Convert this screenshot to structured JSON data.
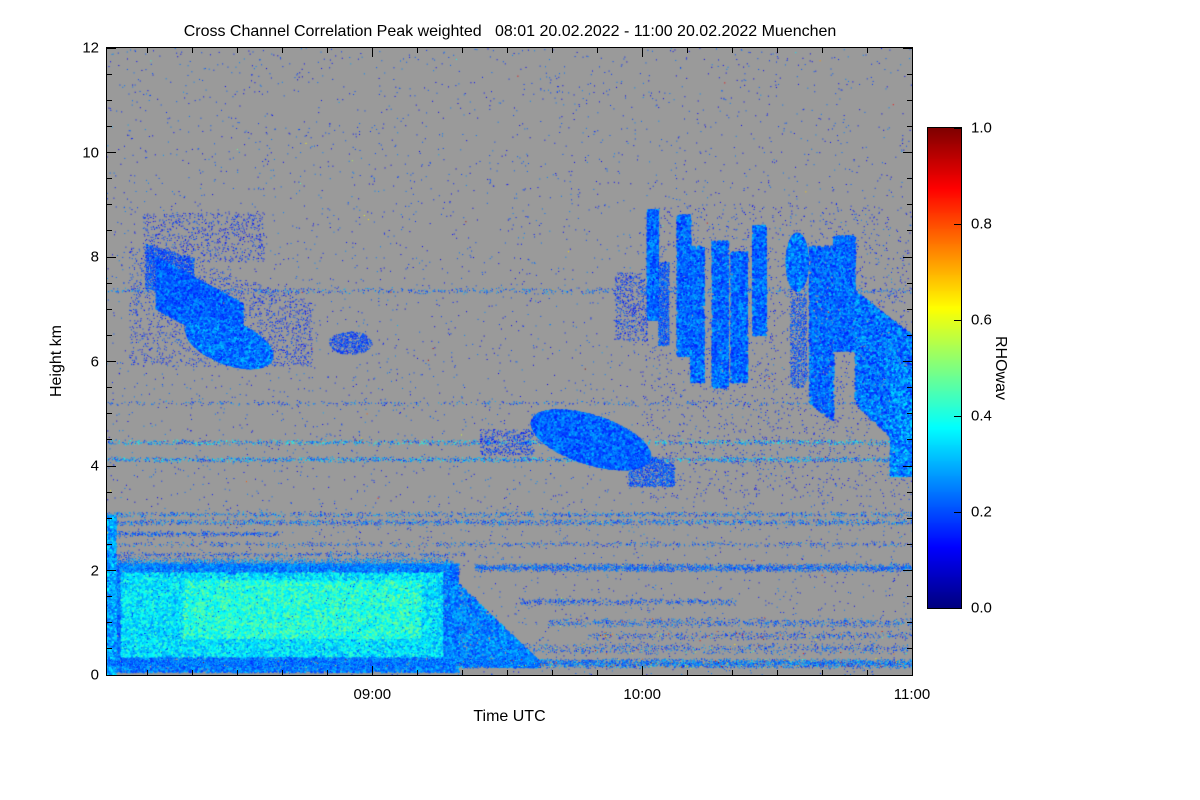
{
  "title": "Cross Channel Correlation Peak weighted   08:01 20.02.2022 - 11:00 20.02.2022 Muenchen",
  "colors": {
    "no_data_gray": "#9a9a9a",
    "frame": "#000000",
    "background": "#ffffff"
  },
  "axes": {
    "x": {
      "label": "Time UTC",
      "ticks": [
        {
          "hour": 9,
          "label": "09:00"
        },
        {
          "hour": 10,
          "label": "10:00"
        },
        {
          "hour": 11,
          "label": "11:00"
        }
      ]
    },
    "y": {
      "label": "Height km",
      "ticks": [
        {
          "km": 0,
          "label": "0"
        },
        {
          "km": 2,
          "label": "2"
        },
        {
          "km": 4,
          "label": "4"
        },
        {
          "km": 6,
          "label": "6"
        },
        {
          "km": 8,
          "label": "8"
        },
        {
          "km": 10,
          "label": "10"
        },
        {
          "km": 12,
          "label": "12"
        }
      ]
    }
  },
  "colorbar": {
    "label": "RHOwav",
    "min": 0.0,
    "max": 1.0,
    "colormap": "jet",
    "ticks": [
      {
        "value": 0.0,
        "label": "0.0"
      },
      {
        "value": 0.2,
        "label": "0.2"
      },
      {
        "value": 0.4,
        "label": "0.4"
      },
      {
        "value": 0.6,
        "label": "0.6"
      },
      {
        "value": 0.8,
        "label": "0.8"
      },
      {
        "value": 1.0,
        "label": "1.0"
      }
    ]
  },
  "chart_data": {
    "type": "heatmap",
    "title": "Cross Channel Correlation Peak weighted   08:01 20.02.2022 - 11:00 20.02.2022 Muenchen",
    "xlabel": "Time UTC",
    "ylabel": "Height km",
    "value_label": "RHOwav",
    "value_range": [
      0.0,
      1.0
    ],
    "colormap": "jet",
    "x_range_hours_utc": [
      8.0167,
      11.0
    ],
    "y_range_km": [
      0,
      12
    ],
    "background": "no-data gray",
    "legend_position": "right colorbar",
    "features": [
      {
        "desc": "boundary-layer aerosol deck 0-2.1 km, 08:01-09:20",
        "kind": "patch",
        "t": [
          8.02,
          9.32
        ],
        "h": [
          0.05,
          2.12
        ],
        "n": 30000,
        "v": [
          0.17,
          0.32
        ],
        "size": 2
      },
      {
        "desc": "boundary-layer bright core",
        "kind": "patch",
        "t": [
          8.07,
          9.26
        ],
        "h": [
          0.35,
          1.95
        ],
        "n": 20000,
        "v": [
          0.27,
          0.44
        ],
        "size": 2
      },
      {
        "desc": "boundary-layer brightest cyan pockets",
        "kind": "patch",
        "t": [
          8.3,
          9.18
        ],
        "h": [
          0.7,
          1.8
        ],
        "n": 9000,
        "v": [
          0.33,
          0.5
        ],
        "size": 2
      },
      {
        "desc": "ragged boundary-layer top ~2.1 km",
        "kind": "hline",
        "h": 2.12,
        "jitter": 0.14,
        "t": [
          8.02,
          9.3
        ],
        "n": 2600,
        "v": [
          0.18,
          0.34
        ]
      },
      {
        "desc": "boundary-layer decay tail 09:17-09:37",
        "kind": "patch",
        "t": [
          9.28,
          9.62
        ],
        "h": [
          0.15,
          1.95
        ],
        "hi_slope": -5,
        "n": 4500,
        "v": [
          0.18,
          0.33
        ],
        "size": 2
      },
      {
        "desc": "left-edge column at start of record",
        "kind": "patch",
        "t": [
          8.017,
          8.05
        ],
        "h": [
          0,
          3.05
        ],
        "n": 1800,
        "v": [
          0.2,
          0.38
        ],
        "size": 2
      },
      {
        "desc": "near-surface echo line ~0.2 km",
        "kind": "hline",
        "h": 0.22,
        "t": [
          8.02,
          9.3
        ],
        "jitter": 0.09,
        "n": 2600,
        "v": [
          0.15,
          0.33
        ],
        "hot": 0.01
      },
      {
        "desc": "near-surface echo line with multicolor outliers",
        "kind": "hline",
        "h": 0.22,
        "t": [
          9.3,
          11.0
        ],
        "jitter": 0.1,
        "n": 3600,
        "v": [
          0.15,
          0.33
        ],
        "hot": 0.06
      },
      {
        "kind": "hline",
        "h": 0.5,
        "t": [
          9.45,
          11.0
        ],
        "jitter": 0.12,
        "n": 800,
        "v": [
          0.13,
          0.3
        ],
        "hot": 0.04
      },
      {
        "kind": "hline",
        "h": 0.75,
        "t": [
          9.8,
          11.0
        ],
        "jitter": 0.1,
        "n": 500,
        "v": [
          0.13,
          0.28
        ],
        "hot": 0.05
      },
      {
        "kind": "hline",
        "h": 1.0,
        "t": [
          9.65,
          11.0
        ],
        "jitter": 0.1,
        "n": 800,
        "v": [
          0.14,
          0.3
        ],
        "hot": 0.02
      },
      {
        "kind": "hline",
        "h": 1.4,
        "t": [
          9.55,
          10.35
        ],
        "jitter": 0.08,
        "n": 450,
        "v": [
          0.14,
          0.28
        ]
      },
      {
        "desc": "residual layer line ~2 km after 09:25",
        "kind": "hline",
        "h": 2.05,
        "t": [
          9.38,
          11.0
        ],
        "jitter": 0.09,
        "n": 2400,
        "v": [
          0.15,
          0.3
        ],
        "hot": 0.01
      },
      {
        "kind": "hline",
        "h": 2.3,
        "t": [
          8.02,
          9.35
        ],
        "jitter": 0.06,
        "n": 420,
        "v": [
          0.13,
          0.28
        ]
      },
      {
        "kind": "hline",
        "h": 2.5,
        "t": [
          8.02,
          11.0
        ],
        "jitter": 0.06,
        "n": 650,
        "v": [
          0.13,
          0.3
        ]
      },
      {
        "kind": "hline",
        "h": 2.7,
        "t": [
          8.02,
          8.65
        ],
        "jitter": 0.06,
        "n": 380,
        "v": [
          0.13,
          0.28
        ]
      },
      {
        "desc": "layer line ~2.9 km across full record",
        "kind": "hline",
        "h": 2.92,
        "t": [
          8.02,
          11.0
        ],
        "jitter": 0.07,
        "n": 1600,
        "v": [
          0.14,
          0.33
        ],
        "hot": 0.008
      },
      {
        "kind": "hline",
        "h": 3.07,
        "t": [
          8.02,
          11.0
        ],
        "jitter": 0.06,
        "n": 1100,
        "v": [
          0.14,
          0.33
        ]
      },
      {
        "desc": "layer line ~4.1 km across full record",
        "kind": "hline",
        "h": 4.12,
        "t": [
          8.02,
          11.0
        ],
        "jitter": 0.06,
        "n": 1700,
        "v": [
          0.15,
          0.38
        ],
        "hot": 0.012
      },
      {
        "desc": "layer line ~4.45 km across full record",
        "kind": "hline",
        "h": 4.45,
        "t": [
          8.02,
          11.0
        ],
        "jitter": 0.06,
        "n": 1400,
        "v": [
          0.15,
          0.42
        ],
        "hot": 0.02
      },
      {
        "kind": "hline",
        "h": 5.2,
        "t": [
          8.02,
          11.0
        ],
        "jitter": 0.05,
        "n": 420,
        "v": [
          0.13,
          0.3
        ]
      },
      {
        "desc": "layer line ~7.35 km across full record",
        "kind": "hline",
        "h": 7.35,
        "t": [
          8.02,
          11.0
        ],
        "jitter": 0.07,
        "n": 800,
        "v": [
          0.14,
          0.32
        ],
        "hot": 0.006
      },
      {
        "desc": "cirrus fallstreaks 08:10-08:45 upper part",
        "kind": "patch",
        "t": [
          8.16,
          8.34
        ],
        "h": [
          7.4,
          8.25
        ],
        "lo_slope": -1.5,
        "hi_slope": -1.5,
        "n": 2400,
        "v": [
          0.14,
          0.28
        ]
      },
      {
        "desc": "cirrus fallstreak band sloping down",
        "kind": "patch",
        "t": [
          8.2,
          8.52
        ],
        "h": [
          7.0,
          8.0
        ],
        "lo_slope": -2.8,
        "hi_slope": -2.8,
        "n": 7000,
        "v": [
          0.15,
          0.3
        ],
        "size": 2
      },
      {
        "desc": "cirrus dense base ~6-6.8 km",
        "kind": "ellipse",
        "tc": 8.47,
        "hc": 6.35,
        "rt": 0.16,
        "rh": 0.42,
        "slope": -1.5,
        "n": 9000,
        "v": [
          0.16,
          0.33
        ],
        "size": 2
      },
      {
        "desc": "cirrus sparse halo",
        "kind": "patch",
        "t": [
          8.1,
          8.78
        ],
        "h": [
          5.9,
          8.35
        ],
        "hi_slope": -1.8,
        "n": 2000,
        "v": [
          0.12,
          0.22
        ]
      },
      {
        "desc": "sparse speckle above cirrus up to 8.8 km",
        "kind": "patch",
        "t": [
          8.15,
          8.6
        ],
        "h": [
          7.9,
          8.85
        ],
        "n": 800,
        "v": [
          0.11,
          0.22
        ]
      },
      {
        "desc": "small cloud patch ~6.3 km near 08:55",
        "kind": "ellipse",
        "tc": 8.92,
        "hc": 6.35,
        "rt": 0.08,
        "rh": 0.22,
        "n": 650,
        "v": [
          0.13,
          0.25
        ]
      },
      {
        "desc": "mid-level cloud blob 4-5 km, 09:35-10:00",
        "kind": "ellipse",
        "tc": 9.81,
        "hc": 4.5,
        "rt": 0.22,
        "rh": 0.48,
        "slope": -1.4,
        "n": 13000,
        "v": [
          0.15,
          0.3
        ],
        "size": 2
      },
      {
        "desc": "blob descending tail to ~3.7 km",
        "kind": "patch",
        "t": [
          9.95,
          10.12
        ],
        "h": [
          3.6,
          4.35
        ],
        "hi_slope": -2,
        "n": 1300,
        "v": [
          0.14,
          0.28
        ]
      },
      {
        "kind": "patch",
        "t": [
          9.4,
          9.6
        ],
        "h": [
          4.2,
          4.7
        ],
        "n": 450,
        "v": [
          0.12,
          0.24
        ]
      },
      {
        "desc": "lead-in speckle before streak cluster",
        "kind": "patch",
        "t": [
          9.9,
          10.02
        ],
        "h": [
          6.4,
          7.7
        ],
        "n": 600,
        "v": [
          0.12,
          0.24
        ]
      },
      {
        "desc": "vertical cloud streak 10:01",
        "kind": "patch",
        "t": [
          10.02,
          10.06
        ],
        "h": [
          6.8,
          8.9
        ],
        "n": 2400,
        "v": [
          0.15,
          0.31
        ],
        "size": 2
      },
      {
        "kind": "patch",
        "t": [
          10.06,
          10.1
        ],
        "h": [
          6.3,
          7.9
        ],
        "n": 1200,
        "v": [
          0.14,
          0.29
        ]
      },
      {
        "desc": "vertical cloud streak 10:09",
        "kind": "patch",
        "t": [
          10.13,
          10.18
        ],
        "h": [
          6.1,
          8.8
        ],
        "n": 2400,
        "v": [
          0.15,
          0.31
        ],
        "size": 2
      },
      {
        "kind": "patch",
        "t": [
          10.18,
          10.23
        ],
        "h": [
          5.6,
          8.2
        ],
        "n": 2000,
        "v": [
          0.15,
          0.31
        ],
        "size": 2
      },
      {
        "desc": "vertical cloud streak 10:17",
        "kind": "patch",
        "t": [
          10.26,
          10.32
        ],
        "h": [
          5.5,
          8.3
        ],
        "n": 2600,
        "v": [
          0.15,
          0.31
        ],
        "size": 2
      },
      {
        "desc": "vertical cloud streak 10:21",
        "kind": "patch",
        "t": [
          10.33,
          10.39
        ],
        "h": [
          5.6,
          8.1
        ],
        "n": 2600,
        "v": [
          0.15,
          0.31
        ],
        "size": 2
      },
      {
        "desc": "vertical cloud streak 10:26",
        "kind": "patch",
        "t": [
          10.41,
          10.46
        ],
        "h": [
          6.5,
          8.6
        ],
        "n": 2000,
        "v": [
          0.15,
          0.31
        ],
        "size": 2
      },
      {
        "desc": "dense cloud head ~7.9 km at 10:34",
        "kind": "ellipse",
        "tc": 10.575,
        "hc": 7.9,
        "rt": 0.04,
        "rh": 0.55,
        "n": 2800,
        "v": [
          0.16,
          0.33
        ],
        "size": 2
      },
      {
        "kind": "patch",
        "t": [
          10.55,
          10.61
        ],
        "h": [
          5.5,
          7.3
        ],
        "n": 900,
        "v": [
          0.14,
          0.28
        ]
      },
      {
        "desc": "sloping streak 10:37-10:43",
        "kind": "patch",
        "t": [
          10.62,
          10.71
        ],
        "h": [
          5.2,
          8.2
        ],
        "lo_slope": -4,
        "n": 3200,
        "v": [
          0.15,
          0.31
        ],
        "size": 2
      },
      {
        "kind": "patch",
        "t": [
          10.71,
          10.79
        ],
        "h": [
          6.2,
          8.4
        ],
        "n": 2600,
        "v": [
          0.15,
          0.31
        ],
        "size": 2
      },
      {
        "desc": "cloud bank descending toward right edge",
        "kind": "patch",
        "t": [
          10.79,
          11.0
        ],
        "h": [
          5.2,
          7.35
        ],
        "lo_slope": -5,
        "hi_slope": -4,
        "n": 6000,
        "v": [
          0.15,
          0.33
        ],
        "size": 2
      },
      {
        "desc": "dense mass at right edge 3.8-5.9 km",
        "kind": "patch",
        "t": [
          10.92,
          11.0
        ],
        "h": [
          3.8,
          5.9
        ],
        "n": 2400,
        "v": [
          0.16,
          0.36
        ],
        "size": 2
      },
      {
        "desc": "sparse fill within streak cluster",
        "kind": "patch",
        "t": [
          10.0,
          11.0
        ],
        "h": [
          3.4,
          9.0
        ],
        "n": 1800,
        "v": [
          0.11,
          0.2
        ]
      },
      {
        "desc": "background single-pixel speckle noise",
        "kind": "noise",
        "n": 5200,
        "v": [
          0.1,
          0.26
        ]
      },
      {
        "desc": "rare colored outlier pixels",
        "kind": "noise",
        "n": 200,
        "v": [
          0.12,
          0.3
        ],
        "hot": 0.3
      }
    ]
  }
}
